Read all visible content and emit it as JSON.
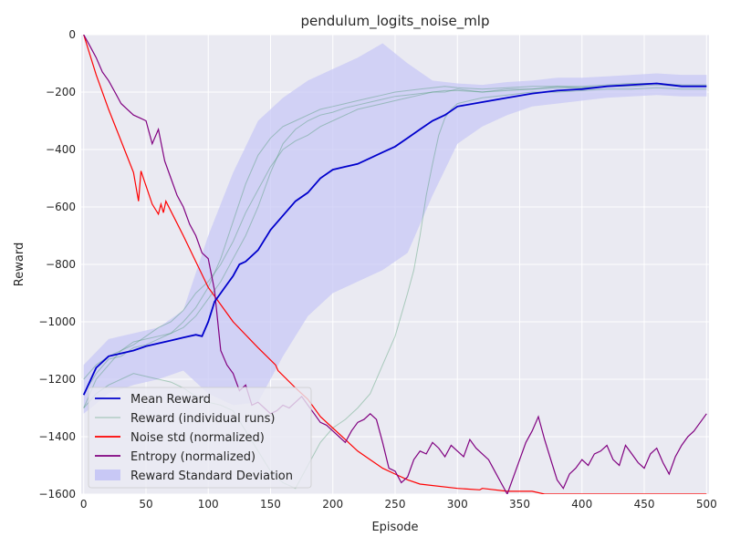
{
  "chart_data": {
    "type": "line",
    "title": "pendulum_logits_noise_mlp",
    "xlabel": "Episode",
    "ylabel": "Reward",
    "xlim": [
      -2,
      502
    ],
    "ylim": [
      -1600,
      0
    ],
    "x_ticks": [
      0,
      50,
      100,
      150,
      200,
      250,
      300,
      350,
      400,
      450,
      500
    ],
    "y_ticks": [
      0,
      -200,
      -400,
      -600,
      -800,
      -1000,
      -1200,
      -1400,
      -1600
    ],
    "x_tick_labels": [
      "0",
      "50",
      "100",
      "150",
      "200",
      "250",
      "300",
      "350",
      "400",
      "450",
      "500"
    ],
    "y_tick_labels": [
      "0",
      "−200",
      "−400",
      "−600",
      "−800",
      "−1000",
      "−1200",
      "−1400",
      "−1600"
    ],
    "grid": true,
    "legend_position": "lower-left",
    "colors": {
      "background": "#eaeaf2",
      "grid": "#ffffff",
      "mean": "#0000cc",
      "runs": "#2e8b57",
      "noise": "#ff0000",
      "entropy": "#800080",
      "std_fill": "#c8c8f5"
    },
    "legend": [
      {
        "label": "Mean Reward",
        "key": "mean",
        "style": "line"
      },
      {
        "label": "Reward (individual runs)",
        "key": "runs",
        "style": "thin"
      },
      {
        "label": "Noise std (normalized)",
        "key": "noise",
        "style": "line"
      },
      {
        "label": "Entropy (normalized)",
        "key": "entropy",
        "style": "line"
      },
      {
        "label": "Reward Standard Deviation",
        "key": "std_fill",
        "style": "patch"
      }
    ],
    "series": [
      {
        "name": "Mean Reward",
        "x": [
          0,
          10,
          20,
          30,
          40,
          50,
          60,
          70,
          80,
          90,
          95,
          100,
          105,
          110,
          115,
          120,
          125,
          130,
          140,
          150,
          160,
          170,
          180,
          190,
          200,
          210,
          220,
          230,
          240,
          250,
          260,
          270,
          280,
          290,
          300,
          320,
          340,
          360,
          380,
          400,
          420,
          440,
          460,
          480,
          500
        ],
        "y": [
          -1255,
          -1160,
          -1120,
          -1110,
          -1100,
          -1085,
          -1075,
          -1065,
          -1055,
          -1045,
          -1050,
          -1000,
          -930,
          -900,
          -870,
          -840,
          -800,
          -790,
          -750,
          -680,
          -630,
          -580,
          -550,
          -500,
          -470,
          -460,
          -450,
          -430,
          -410,
          -390,
          -360,
          -330,
          -300,
          -280,
          -250,
          -235,
          -220,
          -205,
          -195,
          -190,
          -180,
          -175,
          -170,
          -180,
          -180
        ]
      },
      {
        "name": "Reward Standard Deviation",
        "x": [
          0,
          20,
          40,
          60,
          80,
          100,
          120,
          140,
          160,
          180,
          200,
          220,
          240,
          260,
          280,
          300,
          320,
          340,
          360,
          380,
          400,
          420,
          440,
          460,
          480,
          500
        ],
        "upper": [
          -1150,
          -1060,
          -1040,
          -1020,
          -960,
          -700,
          -480,
          -300,
          -220,
          -160,
          -120,
          -80,
          -30,
          -100,
          -160,
          -170,
          -175,
          -165,
          -160,
          -150,
          -150,
          -145,
          -140,
          -135,
          -140,
          -140
        ],
        "lower": [
          -1320,
          -1250,
          -1220,
          -1200,
          -1170,
          -1250,
          -1290,
          -1280,
          -1120,
          -980,
          -900,
          -860,
          -820,
          -760,
          -560,
          -380,
          -320,
          -280,
          -250,
          -240,
          -230,
          -220,
          -215,
          -210,
          -215,
          -215
        ]
      },
      {
        "name": "Noise std (normalized)",
        "x": [
          0,
          10,
          20,
          30,
          40,
          44,
          46,
          55,
          60,
          62,
          64,
          66,
          80,
          100,
          120,
          140,
          154,
          156,
          170,
          180,
          190,
          200,
          210,
          220,
          230,
          240,
          250,
          260,
          270,
          300,
          318,
          320,
          340,
          360,
          370,
          400,
          450,
          500
        ],
        "y": [
          0,
          -140,
          -260,
          -370,
          -480,
          -580,
          -475,
          -590,
          -625,
          -590,
          -620,
          -580,
          -700,
          -880,
          -1000,
          -1090,
          -1150,
          -1170,
          -1230,
          -1270,
          -1330,
          -1370,
          -1410,
          -1450,
          -1480,
          -1510,
          -1530,
          -1550,
          -1565,
          -1580,
          -1585,
          -1580,
          -1590,
          -1590,
          -1600,
          -1600,
          -1600,
          -1600
        ]
      },
      {
        "name": "Entropy (normalized)",
        "x": [
          0,
          5,
          10,
          15,
          20,
          25,
          30,
          35,
          40,
          45,
          50,
          55,
          60,
          65,
          70,
          75,
          80,
          85,
          90,
          95,
          100,
          105,
          110,
          115,
          120,
          125,
          130,
          135,
          140,
          145,
          150,
          155,
          160,
          165,
          170,
          175,
          180,
          185,
          190,
          195,
          200,
          205,
          210,
          215,
          220,
          225,
          230,
          235,
          240,
          245,
          250,
          255,
          260,
          265,
          270,
          275,
          280,
          285,
          290,
          295,
          300,
          305,
          310,
          315,
          320,
          325,
          330,
          335,
          340,
          345,
          350,
          355,
          360,
          365,
          370,
          375,
          380,
          385,
          390,
          395,
          400,
          405,
          410,
          415,
          420,
          425,
          430,
          435,
          440,
          445,
          450,
          455,
          460,
          465,
          470,
          475,
          480,
          485,
          490,
          495,
          500
        ],
        "y": [
          0,
          -40,
          -80,
          -130,
          -160,
          -200,
          -240,
          -260,
          -280,
          -290,
          -300,
          -380,
          -330,
          -440,
          -500,
          -560,
          -600,
          -660,
          -700,
          -760,
          -780,
          -890,
          -1100,
          -1150,
          -1180,
          -1240,
          -1220,
          -1290,
          -1280,
          -1300,
          -1320,
          -1310,
          -1290,
          -1300,
          -1280,
          -1260,
          -1290,
          -1320,
          -1350,
          -1360,
          -1380,
          -1400,
          -1420,
          -1380,
          -1350,
          -1340,
          -1320,
          -1340,
          -1420,
          -1510,
          -1520,
          -1560,
          -1540,
          -1480,
          -1450,
          -1460,
          -1420,
          -1440,
          -1470,
          -1430,
          -1450,
          -1470,
          -1410,
          -1440,
          -1460,
          -1480,
          -1520,
          -1560,
          -1600,
          -1540,
          -1480,
          -1420,
          -1380,
          -1330,
          -1410,
          -1480,
          -1550,
          -1580,
          -1530,
          -1510,
          -1480,
          -1500,
          -1460,
          -1450,
          -1430,
          -1480,
          -1500,
          -1430,
          -1460,
          -1490,
          -1510,
          -1460,
          -1440,
          -1490,
          -1530,
          -1470,
          -1430,
          -1400,
          -1380,
          -1350,
          -1320
        ]
      }
    ],
    "individual_runs": [
      {
        "x": [
          0,
          10,
          20,
          30,
          40,
          50,
          60,
          70,
          80,
          90,
          100,
          110,
          120,
          130,
          140,
          150,
          160,
          170,
          180,
          190,
          200,
          210,
          220,
          230,
          240,
          250,
          260,
          270,
          280,
          290,
          300,
          320,
          340,
          360,
          380,
          400,
          420,
          440,
          460,
          480,
          500
        ],
        "y": [
          -1300,
          -1200,
          -1150,
          -1100,
          -1080,
          -1050,
          -1020,
          -1000,
          -960,
          -900,
          -860,
          -800,
          -720,
          -620,
          -540,
          -460,
          -400,
          -370,
          -350,
          -320,
          -300,
          -280,
          -260,
          -250,
          -240,
          -230,
          -220,
          -210,
          -200,
          -200,
          -190,
          -200,
          -190,
          -190,
          -180,
          -180,
          -175,
          -170,
          -170,
          -175,
          -175
        ]
      },
      {
        "x": [
          0,
          10,
          20,
          30,
          40,
          50,
          60,
          70,
          80,
          90,
          100,
          110,
          120,
          130,
          140,
          150,
          160,
          170,
          180,
          190,
          200,
          210,
          220,
          230,
          240,
          250,
          260,
          270,
          280,
          290,
          300,
          320,
          340,
          360,
          380,
          400,
          420,
          440,
          460,
          480,
          500
        ],
        "y": [
          -1250,
          -1180,
          -1130,
          -1120,
          -1090,
          -1080,
          -1060,
          -1040,
          -1000,
          -950,
          -880,
          -780,
          -650,
          -520,
          -420,
          -360,
          -320,
          -300,
          -280,
          -260,
          -250,
          -240,
          -230,
          -220,
          -210,
          -200,
          -195,
          -190,
          -185,
          -180,
          -185,
          -190,
          -185,
          -180,
          -180,
          -185,
          -180,
          -175,
          -170,
          -180,
          -180
        ]
      },
      {
        "x": [
          0,
          10,
          20,
          30,
          40,
          50,
          60,
          70,
          80,
          90,
          100,
          110,
          120,
          130,
          140,
          150,
          160,
          170,
          180,
          190,
          200,
          210,
          220,
          230,
          240,
          250,
          260,
          270,
          280,
          290,
          300,
          320,
          340,
          360,
          380,
          400,
          420,
          440,
          460,
          480,
          500
        ],
        "y": [
          -1200,
          -1150,
          -1120,
          -1100,
          -1070,
          -1060,
          -1050,
          -1040,
          -1020,
          -980,
          -920,
          -860,
          -780,
          -700,
          -600,
          -480,
          -380,
          -330,
          -300,
          -280,
          -270,
          -255,
          -245,
          -235,
          -225,
          -215,
          -210,
          -205,
          -200,
          -195,
          -195,
          -200,
          -195,
          -190,
          -185,
          -185,
          -180,
          -180,
          -175,
          -180,
          -180
        ]
      },
      {
        "x": [
          0,
          10,
          20,
          30,
          40,
          50,
          60,
          70,
          80,
          90,
          100,
          110,
          120,
          130,
          140,
          150,
          160,
          170,
          180,
          190,
          200,
          210,
          220,
          230,
          240,
          250,
          260,
          265,
          270,
          275,
          280,
          285,
          290,
          295,
          300,
          310,
          320,
          340,
          360,
          380,
          400,
          420,
          440,
          460,
          480,
          500
        ],
        "y": [
          -1300,
          -1250,
          -1220,
          -1200,
          -1180,
          -1190,
          -1200,
          -1210,
          -1230,
          -1260,
          -1280,
          -1290,
          -1310,
          -1380,
          -1450,
          -1520,
          -1560,
          -1580,
          -1500,
          -1420,
          -1370,
          -1340,
          -1300,
          -1250,
          -1150,
          -1050,
          -900,
          -820,
          -700,
          -560,
          -450,
          -350,
          -290,
          -260,
          -240,
          -230,
          -220,
          -210,
          -200,
          -200,
          -195,
          -190,
          -190,
          -185,
          -190,
          -190
        ]
      }
    ]
  }
}
